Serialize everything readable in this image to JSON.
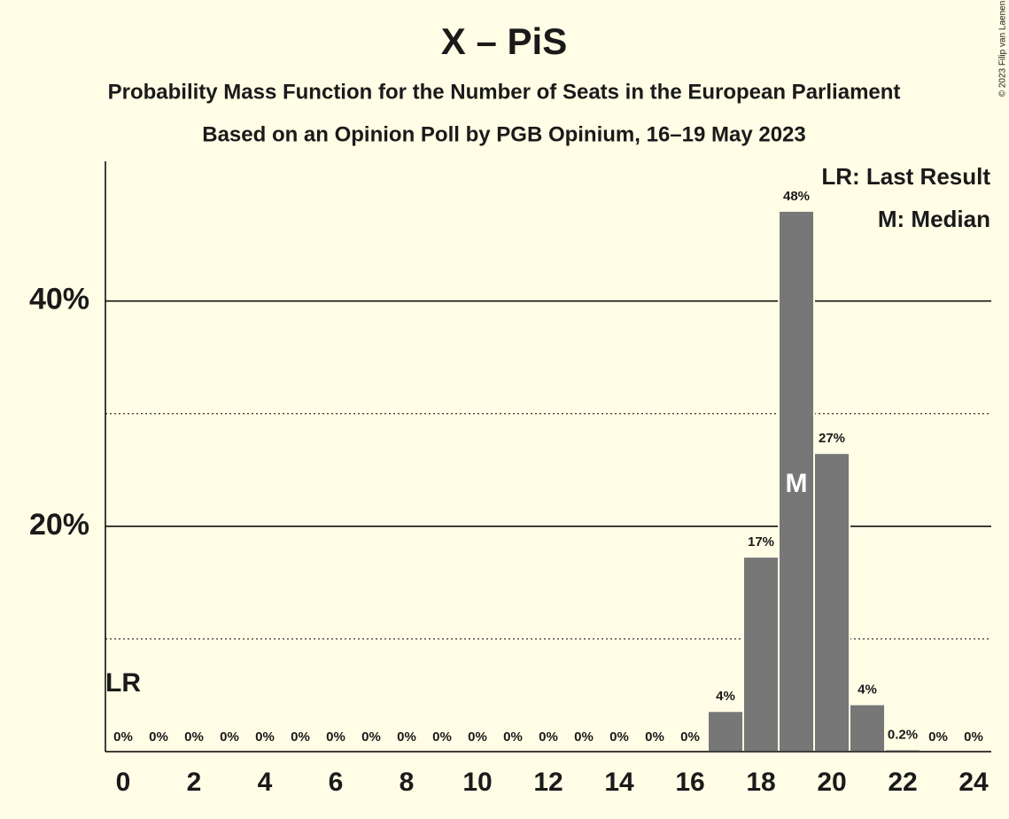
{
  "chart_data": {
    "type": "bar",
    "title": "X – PiS",
    "subtitle": "Probability Mass Function for the Number of Seats in the European Parliament",
    "subtitle2": "Based on an Opinion Poll by PGB Opinium, 16–19 May 2023",
    "categories": [
      0,
      null,
      2,
      null,
      4,
      null,
      6,
      null,
      8,
      null,
      10,
      null,
      12,
      null,
      14,
      null,
      16,
      null,
      18,
      null,
      20,
      null,
      22,
      null,
      24
    ],
    "values": [
      0,
      0,
      0,
      0,
      0,
      0,
      0,
      0,
      0,
      0,
      0,
      0,
      0,
      0,
      0,
      0,
      0,
      3.6,
      17.3,
      48.0,
      26.5,
      4.2,
      0.2,
      0,
      0
    ],
    "value_labels": [
      "0%",
      "0%",
      "0%",
      "0%",
      "0%",
      "0%",
      "0%",
      "0%",
      "0%",
      "0%",
      "0%",
      "0%",
      "0%",
      "0%",
      "0%",
      "0%",
      "0%",
      "4%",
      "17%",
      "48%",
      "27%",
      "4%",
      "0.2%",
      "0%",
      "0%"
    ],
    "color": "#777777",
    "ylim": [
      0,
      52.4
    ],
    "yticks": [
      {
        "value": 20,
        "label": "20%"
      },
      {
        "value": 40,
        "label": "40%"
      }
    ],
    "minor_yticks": [
      10,
      30
    ],
    "last_result": {
      "text": "LR",
      "index": 0
    },
    "median": {
      "text": "M",
      "index": 19
    },
    "legend": [
      "LR: Last Result",
      "M: Median"
    ],
    "copyright": "© 2023 Filip van Laenen"
  }
}
